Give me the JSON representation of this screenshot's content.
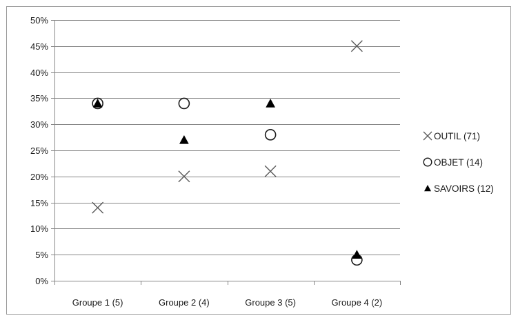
{
  "chart_data": {
    "type": "scatter",
    "title": "",
    "xlabel": "",
    "ylabel": "",
    "categories": [
      "Groupe 1 (5)",
      "Groupe 2 (4)",
      "Groupe 3 (5)",
      "Groupe 4 (2)"
    ],
    "y_ticks": [
      "0%",
      "5%",
      "10%",
      "15%",
      "20%",
      "25%",
      "30%",
      "35%",
      "40%",
      "45%",
      "50%"
    ],
    "ylim": [
      0,
      50
    ],
    "y_unit": "%",
    "grid": true,
    "legend_position": "right",
    "series": [
      {
        "name": "OUTIL (71)",
        "marker": "cross-icon",
        "color": "#595959",
        "values": [
          14,
          20,
          21,
          45
        ]
      },
      {
        "name": "OBJET (14)",
        "marker": "circle-icon",
        "color": "#1a1a1a",
        "values": [
          34,
          34,
          28,
          4
        ]
      },
      {
        "name": "SAVOIRS (12)",
        "marker": "triangle-icon",
        "color": "#000000",
        "values": [
          34,
          27,
          34,
          5
        ]
      }
    ]
  }
}
